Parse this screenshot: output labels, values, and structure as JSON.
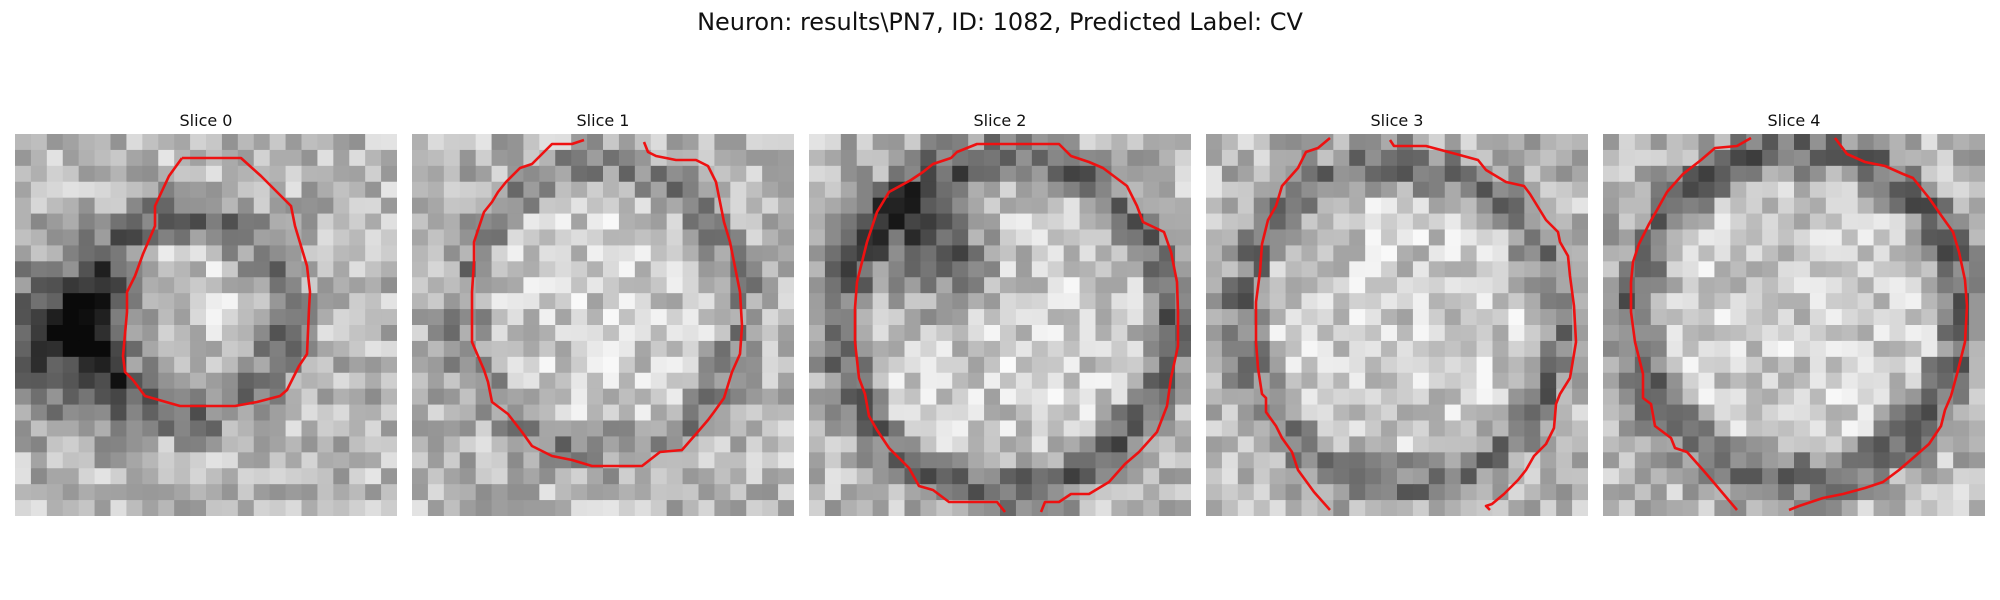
{
  "figure": {
    "title": "Neuron: results\\PN7, ID: 1082, Predicted Label: CV"
  },
  "slices": [
    {
      "label": "Slice 0"
    },
    {
      "label": "Slice 1"
    },
    {
      "label": "Slice 2"
    },
    {
      "label": "Slice 3"
    },
    {
      "label": "Slice 4"
    }
  ],
  "colors": {
    "contour": "#ee1111",
    "background": "#ffffff",
    "text": "#111111"
  }
}
